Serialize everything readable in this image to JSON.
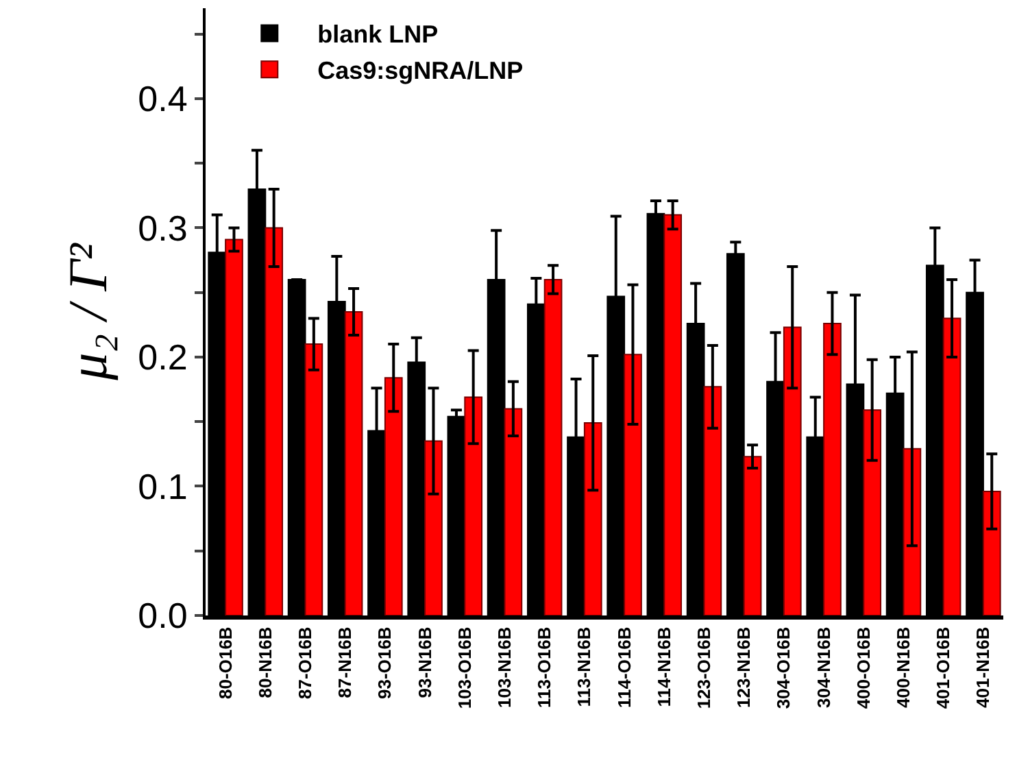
{
  "chart_data": {
    "type": "bar",
    "ylabel": "μ₂ / Γ²",
    "categories": [
      "80-O16B",
      "80-N16B",
      "87-O16B",
      "87-N16B",
      "93-O16B",
      "93-N16B",
      "103-O16B",
      "103-N16B",
      "113-O16B",
      "113-N16B",
      "114-O16B",
      "114-N16B",
      "123-O16B",
      "123-N16B",
      "304-O16B",
      "304-N16B",
      "400-O16B",
      "400-N16B",
      "401-O16B",
      "401-N16B"
    ],
    "series": [
      {
        "name": "blank LNP",
        "color": "#000000",
        "values": [
          0.281,
          0.33,
          0.26,
          0.243,
          0.143,
          0.196,
          0.154,
          0.26,
          0.241,
          0.138,
          0.247,
          0.311,
          0.226,
          0.28,
          0.181,
          0.138,
          0.179,
          0.172,
          0.271,
          0.25
        ],
        "errors": [
          0.029,
          0.03,
          null,
          0.035,
          0.033,
          0.019,
          0.005,
          0.038,
          0.02,
          0.045,
          0.062,
          0.01,
          0.031,
          0.009,
          0.038,
          0.031,
          0.069,
          0.028,
          0.029,
          0.025
        ]
      },
      {
        "name": "Cas9:sgNRA/LNP",
        "color": "#ff0000",
        "values": [
          0.291,
          0.3,
          0.21,
          0.235,
          0.184,
          0.135,
          0.169,
          0.16,
          0.26,
          0.149,
          0.202,
          0.31,
          0.177,
          0.123,
          0.223,
          0.226,
          0.159,
          0.129,
          0.23,
          0.096
        ],
        "errors": [
          0.009,
          0.03,
          0.02,
          0.018,
          0.026,
          0.041,
          0.036,
          0.021,
          0.011,
          0.052,
          0.054,
          0.011,
          0.032,
          0.009,
          0.047,
          0.024,
          0.039,
          0.075,
          0.03,
          0.029
        ]
      }
    ],
    "ylim": [
      0,
      0.47
    ],
    "yticks": [
      {
        "value": 0,
        "label": "0.0"
      },
      {
        "value": 0.05,
        "label": null
      },
      0.1,
      {
        "value": 0.15,
        "label": null
      },
      0.2,
      {
        "value": 0.25,
        "label": null
      },
      0.3,
      {
        "value": 0.35,
        "label": null
      },
      0.4,
      {
        "value": 0.45,
        "label": null
      }
    ],
    "legend": "top left"
  }
}
